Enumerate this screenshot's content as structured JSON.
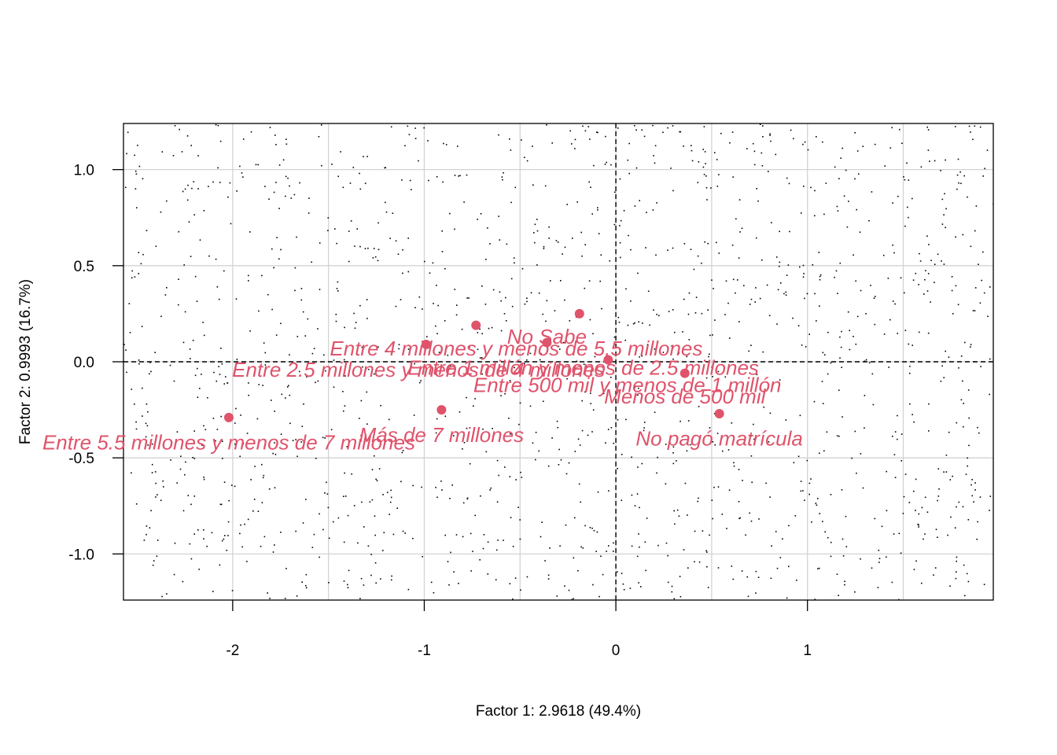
{
  "colors": {
    "points": "#DF536B",
    "grid": "#D3D3D3",
    "background_points": "#000000",
    "axes": "#000000"
  },
  "chart_data": {
    "type": "scatter",
    "title": "",
    "xlabel": "Factor 1: 2.9618 (49.4%)",
    "ylabel": "Factor 2: 0.9993 (16.7%)",
    "xlim": [
      -2.57,
      1.97
    ],
    "ylim": [
      -1.24,
      1.24
    ],
    "x_ticks": [
      -2,
      -1,
      0,
      1
    ],
    "y_ticks": [
      -1.0,
      -0.5,
      0.0,
      0.5,
      1.0
    ],
    "x_tick_labels": [
      "-2",
      "-1",
      "0",
      "1"
    ],
    "y_tick_labels": [
      "-1.0",
      "-0.5",
      "0.0",
      "0.5",
      "1.0"
    ],
    "x_gridlines": [
      -2,
      -1.5,
      -1,
      -0.5,
      0,
      0.5,
      1,
      1.5
    ],
    "y_gridlines": [
      -1.0,
      -0.5,
      0.0,
      0.5,
      1.0
    ],
    "reference_lines": {
      "x": 0,
      "y": 0,
      "style": "dashed"
    },
    "grid": true,
    "background_scatter": true,
    "points": [
      {
        "name": "Entre 4 millones y menos de 5.5 millones",
        "x": -0.99,
        "y": 0.09
      },
      {
        "name": "Entre 2.5 millones y menos de 4 millones",
        "x": -0.73,
        "y": 0.19
      },
      {
        "name": "Entre 1 millón y menos de 2.5 millones",
        "x": -0.19,
        "y": 0.25
      },
      {
        "name": "No Sabe",
        "x": -0.36,
        "y": 0.1
      },
      {
        "name": "Entre 500 mil y menos de 1 millón",
        "x": -0.04,
        "y": 0.01
      },
      {
        "name": "Menos de 500 mil",
        "x": 0.36,
        "y": -0.06
      },
      {
        "name": "No pagó matrícula",
        "x": 0.54,
        "y": -0.27
      },
      {
        "name": "Más de 7 millones",
        "x": -0.91,
        "y": -0.25
      },
      {
        "name": "Entre 5.5 millones y menos de 7 millones",
        "x": -2.02,
        "y": -0.29
      }
    ],
    "labels": [
      {
        "text": "Entre 4 millones y menos de 5.5 millones",
        "x": -0.52,
        "y": 0.07
      },
      {
        "text": "Entre 2.5 millones y menos de 4 millones",
        "x": -1.03,
        "y": -0.04
      },
      {
        "text": "Entre 1 millón y menos de 2.5 millones",
        "x": -0.17,
        "y": -0.03
      },
      {
        "text": "No Sabe",
        "x": -0.36,
        "y": 0.13
      },
      {
        "text": "Entre 500 mil y menos de 1 millón",
        "x": 0.06,
        "y": -0.12
      },
      {
        "text": "Menos de 500 mil",
        "x": 0.36,
        "y": -0.18
      },
      {
        "text": "No pagó matrícula",
        "x": 0.54,
        "y": -0.4
      },
      {
        "text": "Más de 7 millones",
        "x": -0.91,
        "y": -0.38
      },
      {
        "text": "Entre 5.5 millones y menos de 7 millones",
        "x": -2.02,
        "y": -0.42
      }
    ]
  }
}
